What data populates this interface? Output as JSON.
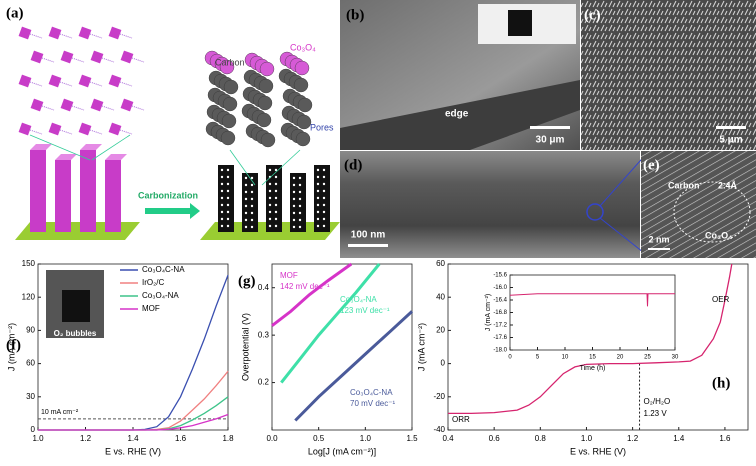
{
  "panels": {
    "a": {
      "label": "(a)",
      "carbon": "Carbon",
      "co3o4": "Co₃O₄",
      "pores": "Pores",
      "carbonization": "Carbonization"
    },
    "b": {
      "label": "(b)",
      "edge": "edge",
      "scale": "30 μm"
    },
    "c": {
      "label": "(c)",
      "scale": "5 μm"
    },
    "d": {
      "label": "(d)",
      "scale": "100 nm"
    },
    "e": {
      "label": "(e)",
      "carbon": "Carbon",
      "spacing": "2.4Å",
      "co3o4": "Co₃O₄",
      "scale": "2 nm"
    }
  },
  "chart_data": [
    {
      "type": "line",
      "panel": "(f)",
      "xlabel": "E vs. RHE (V)",
      "ylabel": "J (mA cm⁻²)",
      "inset_text": "O₂ bubbles",
      "x": [
        1.0,
        1.1,
        1.2,
        1.3,
        1.4,
        1.45,
        1.5,
        1.55,
        1.6,
        1.65,
        1.7,
        1.75,
        1.8
      ],
      "series": [
        {
          "name": "Co₃O₄C-NA",
          "color": "#3a4fb0",
          "values": [
            0,
            0,
            0,
            0,
            0,
            0.5,
            3,
            12,
            30,
            55,
            82,
            112,
            140
          ]
        },
        {
          "name": "IrO₂/C",
          "color": "#f08080",
          "values": [
            0,
            0,
            0,
            0,
            0,
            0,
            0.5,
            2,
            8,
            18,
            28,
            40,
            53
          ]
        },
        {
          "name": "Co₃O₄-NA",
          "color": "#3ec48a",
          "values": [
            0,
            0,
            0,
            0,
            0,
            0,
            0,
            1,
            4,
            9,
            15,
            22,
            30
          ]
        },
        {
          "name": "MOF",
          "color": "#d633c8",
          "values": [
            0,
            0,
            0,
            0,
            0,
            0,
            0,
            0.5,
            2,
            4,
            7,
            10,
            14
          ]
        }
      ],
      "ref_line": {
        "value": 10,
        "label": "10 mA cm⁻²"
      },
      "xlim": [
        1.0,
        1.8
      ],
      "xticks": [
        {
          "value": 1.0,
          "label": "1.0"
        },
        1.2,
        1.4,
        1.6,
        1.8
      ],
      "ylim": [
        0,
        150
      ],
      "yticks": [
        0,
        30,
        60,
        90,
        120,
        150
      ],
      "legend": "upper-left"
    },
    {
      "type": "line",
      "panel": "(g)",
      "xlabel": "Log[J (mA cm⁻²)]",
      "ylabel": "Overpotential (V)",
      "series": [
        {
          "name": "MOF",
          "color": "#d633c8",
          "slope": "142 mV dec⁻¹",
          "x": [
            0,
            0.2,
            0.4,
            0.6,
            0.85
          ],
          "values": [
            0.32,
            0.35,
            0.385,
            0.415,
            0.45
          ]
        },
        {
          "name": "Co₃O₄-NA",
          "color": "#3ee0a8",
          "slope": "123 mV dec⁻¹",
          "x": [
            0.1,
            0.3,
            0.5,
            0.7,
            0.9,
            1.15
          ],
          "values": [
            0.2,
            0.25,
            0.3,
            0.345,
            0.39,
            0.45
          ]
        },
        {
          "name": "Co₃O₄C-NA",
          "color": "#4a5a9a",
          "slope": "70 mV dec⁻¹",
          "x": [
            0.25,
            0.5,
            0.75,
            1.0,
            1.25,
            1.5
          ],
          "values": [
            0.12,
            0.17,
            0.215,
            0.26,
            0.305,
            0.35
          ]
        }
      ],
      "xlim": [
        0,
        1.5
      ],
      "xticks": [
        {
          "value": 0,
          "label": "0.0"
        },
        0.5,
        {
          "value": 1.0,
          "label": "1.0"
        },
        1.5
      ],
      "ylim": [
        0.1,
        0.45
      ],
      "yticks": [
        0.2,
        0.3,
        0.4
      ]
    },
    {
      "type": "line",
      "panel": "(h)",
      "xlabel": "E vs. RHE (V)",
      "ylabel": "J (mA cm⁻²)",
      "annotations": [
        "ORR",
        "OER"
      ],
      "x": [
        0.4,
        0.5,
        0.6,
        0.7,
        0.75,
        0.8,
        0.85,
        0.9,
        0.95,
        1.0,
        1.1,
        1.2,
        1.3,
        1.4,
        1.45,
        1.5,
        1.55,
        1.58,
        1.6,
        1.62,
        1.63
      ],
      "series": [
        {
          "name": "ORR/OER",
          "color": "#d6246e",
          "values": [
            -30,
            -30,
            -29.5,
            -28,
            -25,
            -20,
            -13,
            -6,
            -2,
            -0.5,
            0,
            0,
            0.5,
            1,
            1.5,
            5,
            15,
            25,
            38,
            52,
            60
          ]
        }
      ],
      "vline": {
        "value": 1.23,
        "label": "1.23 V",
        "note": "O₂/H₂O"
      },
      "xlim": [
        0.4,
        1.7
      ],
      "xticks": [
        0.4,
        0.6,
        0.8,
        {
          "value": 1.0,
          "label": "1.0"
        },
        1.2,
        1.4,
        1.6
      ],
      "ylim": [
        -40,
        60
      ],
      "yticks": [
        -40,
        -20,
        0,
        20,
        40,
        60
      ]
    },
    {
      "type": "line",
      "xlabel": "Time (h)",
      "ylabel": "J (mA cm⁻²)",
      "x": [
        0,
        5,
        10,
        15,
        20,
        24.9,
        25,
        25.1,
        30
      ],
      "series": [
        {
          "name": "stability",
          "color": "#d6246e",
          "values": [
            -16.25,
            -16.2,
            -16.2,
            -16.2,
            -16.2,
            -16.2,
            -16.6,
            -16.2,
            -16.2
          ]
        }
      ],
      "xlim": [
        0,
        30
      ],
      "xticks": [
        0,
        5,
        10,
        15,
        20,
        25,
        30
      ],
      "ylim": [
        -18.0,
        -15.6
      ],
      "yticks": [
        -15.6,
        {
          "value": -16.0,
          "label": "-16.0"
        },
        -16.4,
        -16.8,
        -17.2,
        -17.6,
        {
          "value": -18.0,
          "label": "-18.0"
        }
      ]
    }
  ]
}
